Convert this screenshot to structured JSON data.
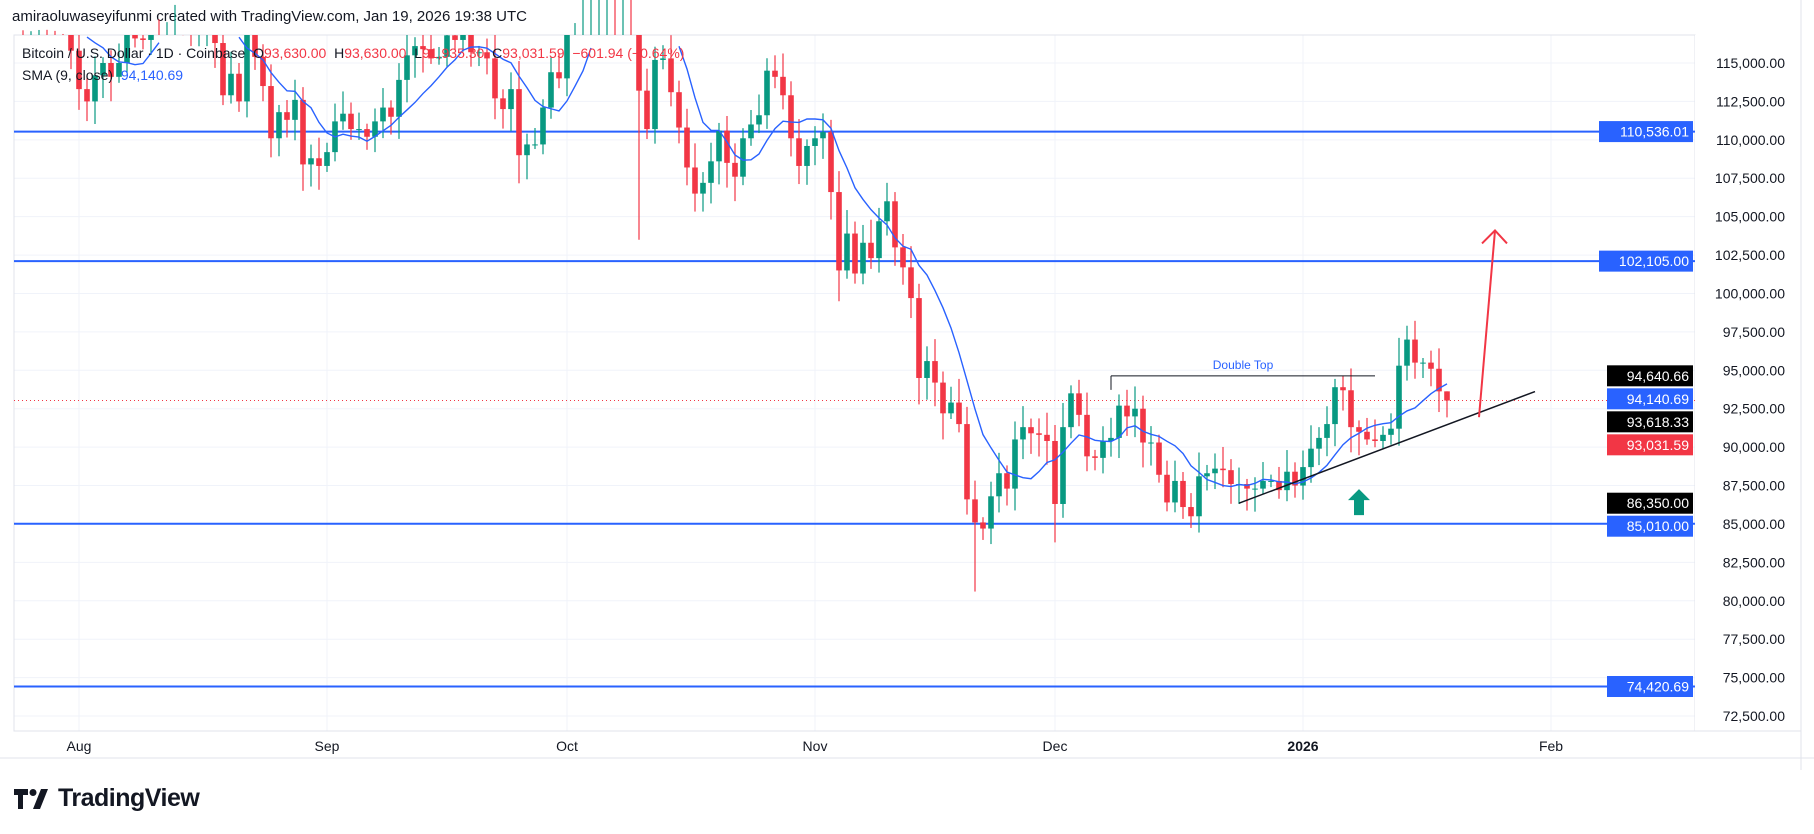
{
  "credit": "amiraoluwaseyifunmi created with TradingView.com, Jan 19, 2026 19:38 UTC",
  "legend": {
    "symbol": "Bitcoin / U.S. Dollar · 1D · Coinbase",
    "open_label": "O",
    "open": "93,630.00",
    "high_label": "H",
    "high": "93,630.00",
    "low_label": "L",
    "low": "91,935.30",
    "close_label": "C",
    "close": "93,031.59",
    "change": "−601.94 (−0.64%)",
    "sma_label": "SMA (9, close)",
    "sma_value": "94,140.69"
  },
  "logo_text": "TradingView",
  "colors": {
    "up": "#089981",
    "down": "#f23645",
    "level": "#2962ff",
    "sma": "#2962ff",
    "drawing": "#131722",
    "arrow": "#f23645",
    "signal": "#089981"
  },
  "chart_data": {
    "type": "candlestick",
    "interval": "1D",
    "first_date": "2025-07-24",
    "closes": [
      118300,
      117600,
      117900,
      119400,
      118000,
      117900,
      117800,
      115800,
      113300,
      112500,
      114200,
      115000,
      114100,
      115000,
      117500,
      116600,
      116500,
      119300,
      118700,
      120100,
      123300,
      118400,
      117400,
      117500,
      117500,
      116300,
      112900,
      114300,
      112500,
      116900,
      115400,
      113500,
      110100,
      111800,
      111300,
      112600,
      108400,
      108800,
      108300,
      109200,
      111200,
      111700,
      110700,
      110700,
      110200,
      111200,
      112100,
      111500,
      113900,
      115500,
      116100,
      115900,
      115300,
      115400,
      116800,
      116500,
      117100,
      115700,
      115700,
      115300,
      112700,
      112000,
      113300,
      109000,
      109700,
      109700,
      112100,
      114400,
      114000,
      118600,
      120600,
      122300,
      122400,
      123500,
      124800,
      121500,
      123300,
      121700,
      113200,
      110700,
      115200,
      115300,
      113100,
      110800,
      108200,
      106500,
      107200,
      108600,
      110600,
      108500,
      107600,
      110100,
      111000,
      111600,
      114500,
      114100,
      112900,
      110100,
      108300,
      109600,
      110100,
      110500,
      106600,
      101500,
      103900,
      101300,
      103300,
      102300,
      104700,
      106000,
      103000,
      101700,
      99700,
      94500,
      95600,
      94200,
      92200,
      92900,
      91500,
      86600,
      85100,
      84700,
      86800,
      88300,
      87300,
      90500,
      91300,
      90900,
      90800,
      90400,
      86300,
      91300,
      93500,
      92100,
      89400,
      89300,
      90400,
      90600,
      92700,
      92000,
      92500,
      90300,
      90300,
      88200,
      86400,
      87800,
      86100,
      85500,
      88100,
      88300,
      88600,
      88500,
      87600,
      87600,
      87300,
      87300,
      87800,
      87800,
      87200,
      88400,
      87500,
      88700,
      89900,
      90600,
      91500,
      93900,
      93700,
      91300,
      91000,
      90500,
      90400,
      90800,
      91200,
      95300,
      97000,
      95500,
      95500,
      95100,
      93630,
      93031.59
    ],
    "notable_extremes": [
      {
        "date": "2025-10-10",
        "low": 103500
      },
      {
        "date": "2025-11-21",
        "low": 80600
      },
      {
        "date": "2025-12-01",
        "low": 83800
      },
      {
        "date": "2026-01-14",
        "high": 97900
      },
      {
        "date": "2026-01-19",
        "high": 93630,
        "low": 91935.3
      }
    ],
    "indicator": {
      "name": "SMA (9, close)",
      "period": 9
    },
    "y_range": [
      71000,
      117000
    ],
    "y_ticks": [
      72500,
      75000,
      77500,
      80000,
      82500,
      85000,
      87500,
      90000,
      92500,
      95000,
      97500,
      100000,
      102500,
      105000,
      107500,
      110000,
      112500,
      115000
    ],
    "x_ticks": [
      {
        "date": "2025-08-01",
        "label": "Aug"
      },
      {
        "date": "2025-09-01",
        "label": "Sep"
      },
      {
        "date": "2025-10-01",
        "label": "Oct"
      },
      {
        "date": "2025-11-01",
        "label": "Nov"
      },
      {
        "date": "2025-12-01",
        "label": "Dec"
      },
      {
        "date": "2026-01-01",
        "label": "2026",
        "bold": true
      },
      {
        "date": "2026-02-01",
        "label": "Feb"
      }
    ],
    "grid": true,
    "horizontal_levels": [
      110536.01,
      102105.0,
      85010.0,
      74420.69
    ],
    "current_price": 93031.59,
    "price_labels": [
      {
        "value": 94640.66,
        "text": "94,640.66",
        "style": "black"
      },
      {
        "value": 94140.69,
        "text": "94,140.69",
        "style": "blue"
      },
      {
        "value": 93618.33,
        "text": "93,618.33",
        "style": "black"
      },
      {
        "value": 93031.59,
        "text": "93,031.59",
        "style": "red"
      },
      {
        "value": 86350.0,
        "text": "86,350.00",
        "style": "black"
      },
      {
        "value": 110536.01,
        "text": "110,536.01",
        "style": "blue"
      },
      {
        "value": 102105.0,
        "text": "102,105.00",
        "style": "blue"
      },
      {
        "value": 85010.0,
        "text": "85,010.00",
        "style": "blue"
      },
      {
        "value": 74420.69,
        "text": "74,420.69",
        "style": "blue"
      }
    ],
    "annotations": {
      "double_top": {
        "text": "Double Top",
        "price": 94640.66,
        "from": "2025-12-08",
        "to": "2026-01-10"
      },
      "trendline": {
        "from": {
          "date": "2025-12-24",
          "price": 86350
        },
        "to": {
          "date": "2026-01-30",
          "price": 93618.33
        }
      },
      "projection_arrow": {
        "from": {
          "date": "2026-01-23",
          "price": 91950
        },
        "to": {
          "date": "2026-01-25",
          "price": 104100
        }
      },
      "signal_arrow": {
        "date": "2026-01-08",
        "price": 88700,
        "direction": "up"
      }
    }
  }
}
